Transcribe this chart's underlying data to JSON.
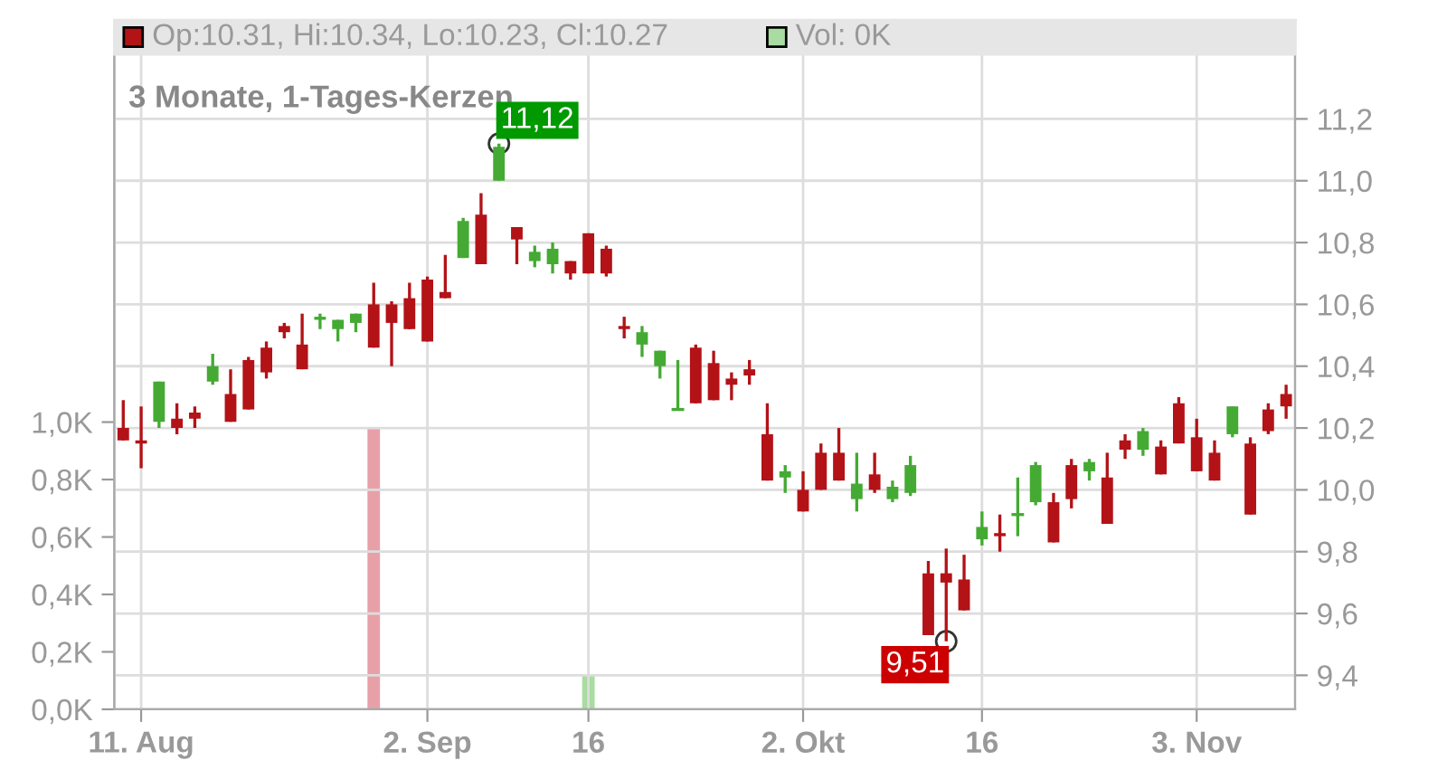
{
  "chart_data": {
    "type": "candlestick",
    "title": "3 Monate, 1-Tages-Kerzen",
    "categories": [
      null,
      "11. Aug",
      null,
      null,
      null,
      null,
      null,
      null,
      null,
      null,
      null,
      null,
      null,
      null,
      null,
      null,
      null,
      "2. Sep",
      null,
      null,
      null,
      null,
      null,
      null,
      null,
      null,
      "16",
      null,
      null,
      null,
      null,
      null,
      null,
      null,
      null,
      null,
      null,
      null,
      "2. Okt",
      null,
      null,
      null,
      null,
      null,
      null,
      null,
      null,
      null,
      "16",
      null,
      null,
      null,
      null,
      null,
      null,
      null,
      null,
      null,
      null,
      null,
      "3. Nov",
      null,
      null,
      null,
      null,
      null
    ],
    "colors": [
      "#b31217",
      "#b31217",
      "#44aa33",
      "#b31217",
      "#b31217",
      "#44aa33",
      "#b31217",
      "#b31217",
      "#b31217",
      "#b31217",
      "#b31217",
      "#44aa33",
      "#44aa33",
      "#44aa33",
      "#b31217",
      "#b31217",
      "#b31217",
      "#b31217",
      "#b31217",
      "#44aa33",
      "#b31217",
      "#44aa33",
      "#b31217",
      "#44aa33",
      "#44aa33",
      "#b31217",
      "#b31217",
      "#b31217",
      "#b31217",
      "#44aa33",
      "#44aa33",
      "#44aa33",
      "#b31217",
      "#b31217",
      "#b31217",
      "#b31217",
      "#b31217",
      "#44aa33",
      "#b31217",
      "#b31217",
      "#b31217",
      "#44aa33",
      "#b31217",
      "#44aa33",
      "#44aa33",
      "#b31217",
      "#b31217",
      "#b31217",
      "#44aa33",
      "#b31217",
      "#44aa33",
      "#44aa33",
      "#b31217",
      "#b31217",
      "#44aa33",
      "#b31217",
      "#b31217",
      "#44aa33",
      "#b31217",
      "#b31217",
      "#b31217",
      "#b31217",
      "#44aa33",
      "#b31217",
      "#b31217",
      "#b31217"
    ],
    "ohlc": [
      [
        10.2,
        10.29,
        10.16,
        10.16
      ],
      [
        10.16,
        10.27,
        10.07,
        10.15
      ],
      [
        10.22,
        10.35,
        10.2,
        10.35
      ],
      [
        10.23,
        10.28,
        10.18,
        10.2
      ],
      [
        10.25,
        10.27,
        10.2,
        10.23
      ],
      [
        10.35,
        10.44,
        10.34,
        10.4
      ],
      [
        10.31,
        10.39,
        10.22,
        10.22
      ],
      [
        10.42,
        10.43,
        10.26,
        10.26
      ],
      [
        10.46,
        10.48,
        10.36,
        10.38
      ],
      [
        10.53,
        10.54,
        10.49,
        10.51
      ],
      [
        10.47,
        10.57,
        10.39,
        10.39
      ],
      [
        10.55,
        10.57,
        10.52,
        10.56
      ],
      [
        10.52,
        10.55,
        10.48,
        10.55
      ],
      [
        10.54,
        10.57,
        10.51,
        10.57
      ],
      [
        10.6,
        10.67,
        10.46,
        10.46
      ],
      [
        10.6,
        10.61,
        10.4,
        10.54
      ],
      [
        10.62,
        10.67,
        10.52,
        10.52
      ],
      [
        10.68,
        10.69,
        10.48,
        10.48
      ],
      [
        10.64,
        10.76,
        10.62,
        10.62
      ],
      [
        10.75,
        10.88,
        10.75,
        10.87
      ],
      [
        10.89,
        10.96,
        10.73,
        10.73
      ],
      [
        11.0,
        11.12,
        11.0,
        11.11
      ],
      [
        10.85,
        10.85,
        10.73,
        10.81
      ],
      [
        10.74,
        10.79,
        10.72,
        10.77
      ],
      [
        10.73,
        10.8,
        10.7,
        10.78
      ],
      [
        10.74,
        10.74,
        10.68,
        10.7
      ],
      [
        10.83,
        10.83,
        10.7,
        10.7
      ],
      [
        10.78,
        10.79,
        10.69,
        10.7
      ],
      [
        10.53,
        10.56,
        10.49,
        10.52
      ],
      [
        10.47,
        10.53,
        10.43,
        10.51
      ],
      [
        10.4,
        10.45,
        10.36,
        10.45
      ],
      [
        10.26,
        10.42,
        10.26,
        10.26
      ],
      [
        10.46,
        10.47,
        10.28,
        10.28
      ],
      [
        10.41,
        10.45,
        10.29,
        10.29
      ],
      [
        10.36,
        10.38,
        10.29,
        10.34
      ],
      [
        10.39,
        10.42,
        10.34,
        10.37
      ],
      [
        10.18,
        10.28,
        10.03,
        10.03
      ],
      [
        10.04,
        10.08,
        9.99,
        10.06
      ],
      [
        10.0,
        10.06,
        9.93,
        9.93
      ],
      [
        10.12,
        10.15,
        10.0,
        10.0
      ],
      [
        10.12,
        10.2,
        10.03,
        10.03
      ],
      [
        9.97,
        10.12,
        9.93,
        10.02
      ],
      [
        10.05,
        10.12,
        9.99,
        10.0
      ],
      [
        9.97,
        10.03,
        9.96,
        10.01
      ],
      [
        9.99,
        10.11,
        9.98,
        10.08
      ],
      [
        9.73,
        9.77,
        9.53,
        9.53
      ],
      [
        9.73,
        9.81,
        9.51,
        9.7
      ],
      [
        9.71,
        9.79,
        9.61,
        9.61
      ],
      [
        9.84,
        9.93,
        9.82,
        9.88
      ],
      [
        9.86,
        9.92,
        9.8,
        9.85
      ],
      [
        9.92,
        10.04,
        9.85,
        9.92
      ],
      [
        9.96,
        10.09,
        9.95,
        10.08
      ],
      [
        9.96,
        9.99,
        9.83,
        9.83
      ],
      [
        10.08,
        10.1,
        9.94,
        9.97
      ],
      [
        10.06,
        10.1,
        10.03,
        10.09
      ],
      [
        10.04,
        10.12,
        9.89,
        9.89
      ],
      [
        10.16,
        10.18,
        10.1,
        10.13
      ],
      [
        10.13,
        10.2,
        10.11,
        10.19
      ],
      [
        10.14,
        10.16,
        10.05,
        10.05
      ],
      [
        10.28,
        10.3,
        10.15,
        10.15
      ],
      [
        10.17,
        10.23,
        10.06,
        10.06
      ],
      [
        10.12,
        10.16,
        10.03,
        10.03
      ],
      [
        10.18,
        10.27,
        10.17,
        10.27
      ],
      [
        10.15,
        10.17,
        9.92,
        9.92
      ],
      [
        10.26,
        10.28,
        10.18,
        10.19
      ],
      [
        10.31,
        10.34,
        10.23,
        10.27
      ]
    ],
    "series": [
      {
        "type": "bar",
        "axis": "y2",
        "color": "#a8dca0",
        "values": [
          0,
          0,
          0,
          0,
          0,
          0,
          0,
          0,
          0,
          0,
          0,
          0,
          0,
          0,
          0.98,
          0,
          0,
          0,
          0,
          0,
          0,
          0,
          0,
          0,
          0,
          0,
          0.12,
          0,
          0,
          0,
          0,
          0,
          0,
          0,
          0,
          0,
          0,
          0,
          0,
          0,
          0,
          0,
          0,
          0,
          0,
          0,
          0,
          0,
          0,
          0,
          0,
          0,
          0,
          0,
          0,
          0,
          0,
          0,
          0,
          0,
          0,
          0,
          0,
          0,
          0,
          0
        ],
        "colors": [
          "#e8a0a8",
          "#e8a0a8",
          "#e8a0a8",
          "#e8a0a8",
          "#e8a0a8",
          "#e8a0a8",
          "#e8a0a8",
          "#e8a0a8",
          "#e8a0a8",
          "#e8a0a8",
          "#e8a0a8",
          "#e8a0a8",
          "#e8a0a8",
          "#e8a0a8",
          "#e8a0a8",
          "#e8a0a8",
          "#e8a0a8",
          "#e8a0a8",
          "#e8a0a8",
          "#e8a0a8",
          "#e8a0a8",
          "#e8a0a8",
          "#e8a0a8",
          "#e8a0a8",
          "#e8a0a8",
          "#e8a0a8",
          "#a8dca0",
          "#e8a0a8",
          "#e8a0a8",
          "#e8a0a8",
          "#e8a0a8",
          "#e8a0a8",
          "#e8a0a8",
          "#e8a0a8",
          "#e8a0a8",
          "#e8a0a8",
          "#e8a0a8",
          "#e8a0a8",
          "#e8a0a8",
          "#e8a0a8",
          "#e8a0a8",
          "#e8a0a8",
          "#e8a0a8",
          "#e8a0a8",
          "#e8a0a8",
          "#e8a0a8",
          "#e8a0a8",
          "#e8a0a8",
          "#e8a0a8",
          "#e8a0a8",
          "#e8a0a8",
          "#e8a0a8",
          "#e8a0a8",
          "#e8a0a8",
          "#e8a0a8",
          "#e8a0a8",
          "#e8a0a8",
          "#e8a0a8",
          "#e8a0a8",
          "#e8a0a8",
          "#e8a0a8",
          "#e8a0a8",
          "#e8a0a8",
          "#e8a0a8",
          "#e8a0a8",
          "#e8a0a8"
        ]
      }
    ],
    "ylim": [
      9.29,
      11.52
    ],
    "yticks": [
      {
        "value": 9.4,
        "label": "9,4"
      },
      {
        "value": 9.6,
        "label": "9,6"
      },
      {
        "value": 9.8,
        "label": "9,8"
      },
      {
        "value": 10.0,
        "label": "10,0"
      },
      {
        "value": 10.2,
        "label": "10,2"
      },
      {
        "value": 10.4,
        "label": "10,4"
      },
      {
        "value": 10.6,
        "label": "10,6"
      },
      {
        "value": 10.8,
        "label": "10,8"
      },
      {
        "value": 11.0,
        "label": "11,0"
      },
      {
        "value": 11.2,
        "label": "11,2"
      }
    ],
    "y2lim": [
      0,
      2.4
    ],
    "y2ticks": [
      {
        "value": 0,
        "label": "0,0K"
      },
      {
        "value": 0.2,
        "label": "0,2K"
      },
      {
        "value": 0.4,
        "label": "0,4K"
      },
      {
        "value": 0.6,
        "label": "0,6K"
      },
      {
        "value": 0.8,
        "label": "0,8K"
      },
      {
        "value": 1.0,
        "label": "1,0K"
      }
    ],
    "grid": true,
    "annotations": [
      "Op:10.31, Hi:10.34, Lo:10.23, Cl:10.27",
      "Vol: 0K",
      "11,12",
      "9,51"
    ]
  }
}
